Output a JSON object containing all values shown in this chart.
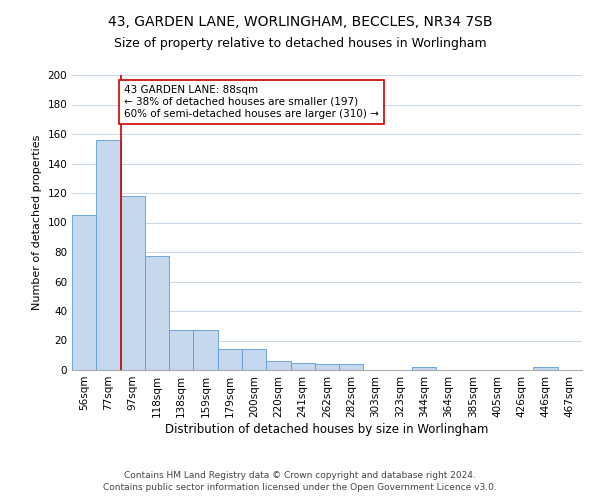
{
  "title1": "43, GARDEN LANE, WORLINGHAM, BECCLES, NR34 7SB",
  "title2": "Size of property relative to detached houses in Worlingham",
  "xlabel": "Distribution of detached houses by size in Worlingham",
  "ylabel": "Number of detached properties",
  "bin_labels": [
    "56sqm",
    "77sqm",
    "97sqm",
    "118sqm",
    "138sqm",
    "159sqm",
    "179sqm",
    "200sqm",
    "220sqm",
    "241sqm",
    "262sqm",
    "282sqm",
    "303sqm",
    "323sqm",
    "344sqm",
    "364sqm",
    "385sqm",
    "405sqm",
    "426sqm",
    "446sqm",
    "467sqm"
  ],
  "bar_heights": [
    105,
    156,
    118,
    77,
    27,
    27,
    14,
    14,
    6,
    5,
    4,
    4,
    0,
    0,
    2,
    0,
    0,
    0,
    0,
    2,
    0
  ],
  "bar_color": "#c5d8ed",
  "bar_edge_color": "#5b9bd5",
  "property_line_x": 1.5,
  "annotation_text": "43 GARDEN LANE: 88sqm\n← 38% of detached houses are smaller (197)\n60% of semi-detached houses are larger (310) →",
  "annotation_box_color": "#ffffff",
  "annotation_box_edge_color": "#cc0000",
  "vline_color": "#cc0000",
  "footer1": "Contains HM Land Registry data © Crown copyright and database right 2024.",
  "footer2": "Contains public sector information licensed under the Open Government Licence v3.0.",
  "ylim": [
    0,
    200
  ],
  "yticks": [
    0,
    20,
    40,
    60,
    80,
    100,
    120,
    140,
    160,
    180,
    200
  ],
  "grid_color": "#c8d8e8",
  "bg_color": "#ffffff",
  "title1_fontsize": 10,
  "title2_fontsize": 9,
  "xlabel_fontsize": 8.5,
  "ylabel_fontsize": 8,
  "tick_fontsize": 7.5,
  "annotation_fontsize": 7.5,
  "footer_fontsize": 6.5
}
